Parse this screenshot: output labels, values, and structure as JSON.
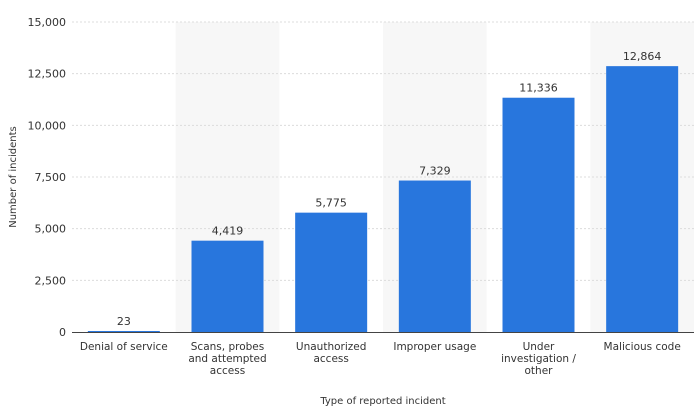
{
  "chart_data": {
    "type": "bar",
    "categories": [
      "Denial of service",
      "Scans, probes and attempted access",
      "Unauthorized access",
      "Improper usage",
      "Under investigation / other",
      "Malicious code"
    ],
    "category_label_lines": [
      [
        "Denial of service"
      ],
      [
        "Scans, probes",
        "and attempted",
        "access"
      ],
      [
        "Unauthorized",
        "access"
      ],
      [
        "Improper usage"
      ],
      [
        "Under",
        "investigation /",
        "other"
      ],
      [
        "Malicious code"
      ]
    ],
    "values": [
      23,
      4419,
      5775,
      7329,
      11336,
      12864
    ],
    "data_labels": [
      "23",
      "4,419",
      "5,775",
      "7,329",
      "11,336",
      "12,864"
    ],
    "title": "",
    "xlabel": "Type of reported incident",
    "ylabel": "Number of incidents",
    "ylim": [
      0,
      15000
    ],
    "yticks": [
      0,
      2500,
      5000,
      7500,
      10000,
      12500,
      15000
    ],
    "ytick_labels": [
      "0",
      "2,500",
      "5,000",
      "7,500",
      "10,000",
      "12,500",
      "15,000"
    ],
    "grid": true,
    "alternating_column_bands": true,
    "colors": {
      "bar": "#2876dd",
      "band": "#f7f7f7",
      "grid": "#dcdcdc",
      "axis": "#444444"
    }
  }
}
